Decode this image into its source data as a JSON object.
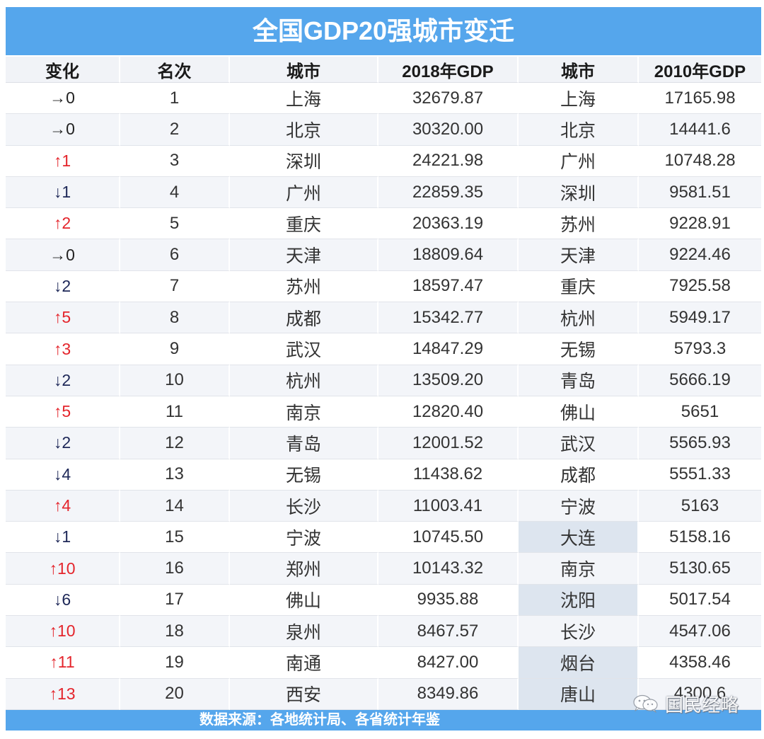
{
  "colors": {
    "banner": "#55a6ec",
    "up": "#e4252c",
    "down": "#1e2858",
    "same": "#222222",
    "highlight": "#dde5ef",
    "stripe": "#f3f5f9"
  },
  "chart_data": {
    "type": "table",
    "title": "全国GDP20强城市变迁",
    "columns": [
      "变化",
      "名次",
      "城市",
      "2018年GDP",
      "城市",
      "2010年GDP"
    ],
    "rows": [
      {
        "change": "→0",
        "rank": 1,
        "city_2018": "上海",
        "gdp_2018": "32679.87",
        "city_2010": "上海",
        "gdp_2010": "17165.98",
        "city_2010_highlight": false
      },
      {
        "change": "→0",
        "rank": 2,
        "city_2018": "北京",
        "gdp_2018": "30320.00",
        "city_2010": "北京",
        "gdp_2010": "14441.6",
        "city_2010_highlight": false
      },
      {
        "change": "↑1",
        "rank": 3,
        "city_2018": "深圳",
        "gdp_2018": "24221.98",
        "city_2010": "广州",
        "gdp_2010": "10748.28",
        "city_2010_highlight": false
      },
      {
        "change": "↓1",
        "rank": 4,
        "city_2018": "广州",
        "gdp_2018": "22859.35",
        "city_2010": "深圳",
        "gdp_2010": "9581.51",
        "city_2010_highlight": false
      },
      {
        "change": "↑2",
        "rank": 5,
        "city_2018": "重庆",
        "gdp_2018": "20363.19",
        "city_2010": "苏州",
        "gdp_2010": "9228.91",
        "city_2010_highlight": false
      },
      {
        "change": "→0",
        "rank": 6,
        "city_2018": "天津",
        "gdp_2018": "18809.64",
        "city_2010": "天津",
        "gdp_2010": "9224.46",
        "city_2010_highlight": false
      },
      {
        "change": "↓2",
        "rank": 7,
        "city_2018": "苏州",
        "gdp_2018": "18597.47",
        "city_2010": "重庆",
        "gdp_2010": "7925.58",
        "city_2010_highlight": false
      },
      {
        "change": "↑5",
        "rank": 8,
        "city_2018": "成都",
        "gdp_2018": "15342.77",
        "city_2010": "杭州",
        "gdp_2010": "5949.17",
        "city_2010_highlight": false
      },
      {
        "change": "↑3",
        "rank": 9,
        "city_2018": "武汉",
        "gdp_2018": "14847.29",
        "city_2010": "无锡",
        "gdp_2010": "5793.3",
        "city_2010_highlight": false
      },
      {
        "change": "↓2",
        "rank": 10,
        "city_2018": "杭州",
        "gdp_2018": "13509.20",
        "city_2010": "青岛",
        "gdp_2010": "5666.19",
        "city_2010_highlight": false
      },
      {
        "change": "↑5",
        "rank": 11,
        "city_2018": "南京",
        "gdp_2018": "12820.40",
        "city_2010": "佛山",
        "gdp_2010": "5651",
        "city_2010_highlight": false
      },
      {
        "change": "↓2",
        "rank": 12,
        "city_2018": "青岛",
        "gdp_2018": "12001.52",
        "city_2010": "武汉",
        "gdp_2010": "5565.93",
        "city_2010_highlight": false
      },
      {
        "change": "↓4",
        "rank": 13,
        "city_2018": "无锡",
        "gdp_2018": "11438.62",
        "city_2010": "成都",
        "gdp_2010": "5551.33",
        "city_2010_highlight": false
      },
      {
        "change": "↑4",
        "rank": 14,
        "city_2018": "长沙",
        "gdp_2018": "11003.41",
        "city_2010": "宁波",
        "gdp_2010": "5163",
        "city_2010_highlight": false
      },
      {
        "change": "↓1",
        "rank": 15,
        "city_2018": "宁波",
        "gdp_2018": "10745.50",
        "city_2010": "大连",
        "gdp_2010": "5158.16",
        "city_2010_highlight": true
      },
      {
        "change": "↑10",
        "rank": 16,
        "city_2018": "郑州",
        "gdp_2018": "10143.32",
        "city_2010": "南京",
        "gdp_2010": "5130.65",
        "city_2010_highlight": false
      },
      {
        "change": "↓6",
        "rank": 17,
        "city_2018": "佛山",
        "gdp_2018": "9935.88",
        "city_2010": "沈阳",
        "gdp_2010": "5017.54",
        "city_2010_highlight": true
      },
      {
        "change": "↑10",
        "rank": 18,
        "city_2018": "泉州",
        "gdp_2018": "8467.57",
        "city_2010": "长沙",
        "gdp_2010": "4547.06",
        "city_2010_highlight": false
      },
      {
        "change": "↑11",
        "rank": 19,
        "city_2018": "南通",
        "gdp_2018": "8427.00",
        "city_2010": "烟台",
        "gdp_2010": "4358.46",
        "city_2010_highlight": true
      },
      {
        "change": "↑13",
        "rank": 20,
        "city_2018": "西安",
        "gdp_2018": "8349.86",
        "city_2010": "唐山",
        "gdp_2010": "4300.6",
        "city_2010_highlight": true
      }
    ]
  },
  "footer": {
    "source": "数据来源：各地统计局、各省统计年鉴"
  },
  "watermark": {
    "icon": "wechat-icon",
    "text": "国民经略"
  }
}
